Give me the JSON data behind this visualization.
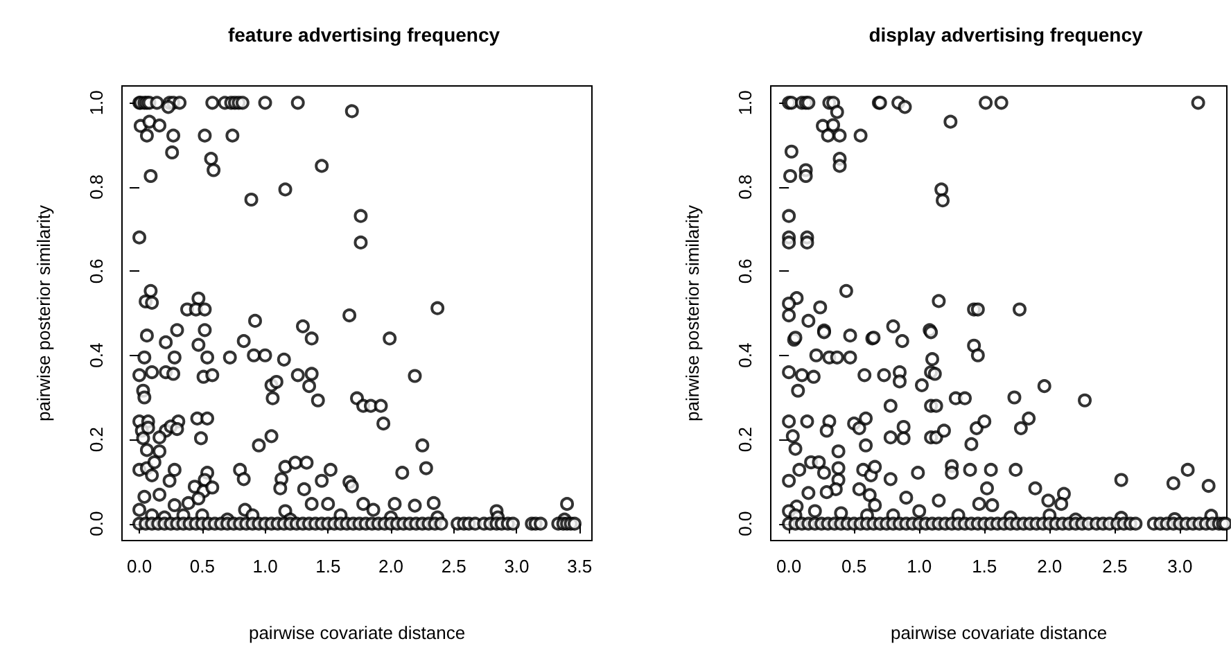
{
  "chart_data": [
    {
      "type": "scatter",
      "title": "feature advertising frequency",
      "xlabel": "pairwise covariate distance",
      "ylabel": "pairwise posterior similarity",
      "marker": "circle",
      "color": "#000000",
      "xlim": [
        -0.138,
        3.598
      ],
      "ylim": [
        -0.04,
        1.04
      ],
      "xticks": [
        {
          "value": 0,
          "label": "0.0"
        },
        {
          "value": 0.5,
          "label": "0.5"
        },
        {
          "value": 1,
          "label": "1.0"
        },
        {
          "value": 1.5,
          "label": "1.5"
        },
        {
          "value": 2,
          "label": "2.0"
        },
        {
          "value": 2.5,
          "label": "2.5"
        },
        {
          "value": 3,
          "label": "3.0"
        },
        {
          "value": 3.5,
          "label": "3.5"
        }
      ],
      "yticks": [
        {
          "value": 0,
          "label": "0.0"
        },
        {
          "value": 0.2,
          "label": "0.2"
        },
        {
          "value": 0.4,
          "label": "0.4"
        },
        {
          "value": 0.6,
          "label": "0.6"
        },
        {
          "value": 0.8,
          "label": "0.8"
        },
        {
          "value": 1,
          "label": "1.0"
        }
      ],
      "x": [
        0,
        0.01,
        0.04,
        0.06,
        0.08,
        0.14,
        0.24,
        0.27,
        0.32,
        0.58,
        0.68,
        0.73,
        0.76,
        0.79,
        0.82,
        1.0,
        1.26,
        0.23,
        1.69,
        0.01,
        0.08,
        0.16,
        0.06,
        0.27,
        0.52,
        0.74,
        0.26,
        0.57,
        0.59,
        1.45,
        0.09,
        1.16,
        0.89,
        1.76,
        1.76,
        0,
        0.09,
        0.05,
        0.1,
        0.47,
        0.38,
        0.45,
        0.52,
        0.92,
        1.3,
        1.67,
        2.37,
        0.06,
        0.3,
        0.52,
        0.21,
        0.47,
        0.83,
        1.37,
        1.99,
        0.04,
        0.28,
        0.54,
        0.72,
        0.91,
        1.0,
        1.15,
        0,
        0.1,
        0.21,
        0.27,
        0.51,
        0.58,
        1.26,
        1.37,
        2.19,
        0.03,
        0.04,
        1.05,
        1.09,
        1.06,
        1.35,
        1.42,
        1.73,
        1.78,
        1.84,
        1.92,
        1.94,
        0,
        0.07,
        0.31,
        0.46,
        0.54,
        0.02,
        0.07,
        0.21,
        0.25,
        0.3,
        0.49,
        0.03,
        0.16,
        1.05,
        0.95,
        2.25,
        0.06,
        0.16,
        0,
        0.06,
        0.28,
        0.12,
        0.1,
        0.24,
        0.54,
        0.52,
        0.8,
        0.83,
        1.16,
        1.24,
        1.33,
        1.52,
        1.45,
        1.13,
        1.12,
        1.31,
        1.67,
        1.69,
        2.09,
        2.28,
        0.04,
        0.16,
        0.44,
        0.51,
        0.58,
        0.39,
        0.47,
        1.37,
        1.5,
        1.78,
        2.03,
        2.19,
        2.34,
        3.4,
        2.84,
        0,
        0.28,
        0.84,
        1.16,
        1.86,
        0.1,
        0.2,
        0.35,
        0.5,
        0.7,
        0.9,
        1.2,
        1.6,
        2.0,
        2.37,
        2.85,
        3.38,
        0,
        0.05,
        0.1,
        0.15,
        0.2,
        0.25,
        0.3,
        0.35,
        0.4,
        0.45,
        0.5,
        0.55,
        0.6,
        0.65,
        0.7,
        0.75,
        0.8,
        0.85,
        0.9,
        0.95,
        1.0,
        1.05,
        1.1,
        1.15,
        1.2,
        1.25,
        1.3,
        1.35,
        1.4,
        1.45,
        1.5,
        1.55,
        1.6,
        1.65,
        1.7,
        1.75,
        1.8,
        1.85,
        1.9,
        1.95,
        2.0,
        2.05,
        2.1,
        2.15,
        2.2,
        2.25,
        2.3,
        2.35,
        2.4,
        2.53,
        2.58,
        2.62,
        2.67,
        2.74,
        2.79,
        2.84,
        2.88,
        2.93,
        2.97,
        3.12,
        3.15,
        3.19,
        3.33,
        3.37,
        3.4,
        3.43,
        3.46
      ],
      "values": [
        1,
        1,
        1,
        1,
        1,
        1,
        1,
        1,
        1,
        1,
        1,
        1,
        1,
        1,
        1,
        1,
        1,
        0.99,
        0.98,
        0.945,
        0.955,
        0.946,
        0.922,
        0.922,
        0.922,
        0.922,
        0.882,
        0.867,
        0.84,
        0.85,
        0.826,
        0.794,
        0.77,
        0.731,
        0.668,
        0.68,
        0.553,
        0.528,
        0.525,
        0.535,
        0.509,
        0.509,
        0.509,
        0.482,
        0.469,
        0.495,
        0.512,
        0.447,
        0.46,
        0.46,
        0.431,
        0.425,
        0.434,
        0.44,
        0.44,
        0.395,
        0.395,
        0.395,
        0.395,
        0.4,
        0.4,
        0.39,
        0.353,
        0.36,
        0.36,
        0.356,
        0.349,
        0.353,
        0.353,
        0.356,
        0.351,
        0.316,
        0.3,
        0.329,
        0.337,
        0.298,
        0.327,
        0.293,
        0.298,
        0.28,
        0.28,
        0.28,
        0.238,
        0.243,
        0.243,
        0.243,
        0.25,
        0.25,
        0.221,
        0.228,
        0.221,
        0.231,
        0.225,
        0.203,
        0.203,
        0.205,
        0.208,
        0.186,
        0.186,
        0.175,
        0.172,
        0.128,
        0.132,
        0.128,
        0.146,
        0.115,
        0.102,
        0.121,
        0.104,
        0.128,
        0.106,
        0.135,
        0.145,
        0.145,
        0.128,
        0.102,
        0.106,
        0.084,
        0.082,
        0.099,
        0.089,
        0.121,
        0.132,
        0.064,
        0.069,
        0.088,
        0.077,
        0.086,
        0.049,
        0.06,
        0.047,
        0.047,
        0.047,
        0.047,
        0.043,
        0.049,
        0.047,
        0.03,
        0.033,
        0.044,
        0.033,
        0.03,
        0.033,
        0.02,
        0.015,
        0.02,
        0.02,
        0.01,
        0.02,
        0.01,
        0.02,
        0.015,
        0.015,
        0.015,
        0.01,
        0,
        0,
        0,
        0,
        0,
        0,
        0,
        0,
        0,
        0,
        0,
        0,
        0,
        0,
        0,
        0,
        0,
        0,
        0,
        0,
        0,
        0,
        0,
        0,
        0,
        0,
        0,
        0,
        0,
        0,
        0,
        0,
        0,
        0,
        0,
        0,
        0,
        0,
        0,
        0,
        0,
        0,
        0,
        0,
        0,
        0,
        0,
        0,
        0,
        0,
        0,
        0,
        0,
        0,
        0,
        0,
        0,
        0,
        0,
        0,
        0,
        0,
        0,
        0,
        0,
        0,
        0
      ]
    },
    {
      "type": "scatter",
      "title": "display advertising frequency",
      "xlabel": "pairwise covariate distance",
      "ylabel": "pairwise posterior similarity",
      "marker": "circle",
      "color": "#000000",
      "xlim": [
        -0.139,
        3.36
      ],
      "ylim": [
        -0.04,
        1.04
      ],
      "xticks": [
        {
          "value": 0,
          "label": "0.0"
        },
        {
          "value": 0.5,
          "label": "0.5"
        },
        {
          "value": 1,
          "label": "1.0"
        },
        {
          "value": 1.5,
          "label": "1.5"
        },
        {
          "value": 2,
          "label": "2.0"
        },
        {
          "value": 2.5,
          "label": "2.5"
        },
        {
          "value": 3,
          "label": "3.0"
        }
      ],
      "yticks": [
        {
          "value": 0,
          "label": "0.0"
        },
        {
          "value": 0.2,
          "label": "0.2"
        },
        {
          "value": 0.4,
          "label": "0.4"
        },
        {
          "value": 0.6,
          "label": "0.6"
        },
        {
          "value": 0.8,
          "label": "0.8"
        },
        {
          "value": 1,
          "label": "1.0"
        }
      ],
      "x": [
        0,
        0.02,
        0.1,
        0.13,
        0.15,
        0.31,
        0.34,
        0.69,
        0.7,
        0.84,
        1.51,
        1.63,
        3.14,
        0.89,
        0.37,
        1.24,
        0.26,
        0.34,
        0.3,
        0.39,
        0.55,
        0.02,
        0.39,
        0.39,
        0.13,
        0.01,
        0.13,
        1.17,
        1.18,
        0,
        0,
        0,
        0.14,
        0.14,
        0.44,
        0.06,
        0,
        1.15,
        0,
        0.24,
        0.15,
        1.42,
        1.45,
        1.77,
        0.27,
        0.47,
        0.8,
        1.08,
        0.64,
        0.87,
        0.04,
        1.42,
        0.05,
        0.27,
        0.65,
        1.09,
        1.45,
        0.21,
        0.31,
        0.37,
        0.47,
        1.1,
        0,
        0.1,
        0.19,
        0.07,
        0.58,
        0.73,
        0.85,
        0.85,
        1.09,
        1.12,
        1.02,
        1.28,
        1.35,
        1.73,
        1.96,
        2.27,
        0.78,
        1.09,
        1.13,
        0,
        0.14,
        0.31,
        0.29,
        0.5,
        0.54,
        0.59,
        0.59,
        0.03,
        0.05,
        0.38,
        0.78,
        0.88,
        0.88,
        1.09,
        1.13,
        1.19,
        1.4,
        1.44,
        1.5,
        1.78,
        1.84,
        0,
        0.08,
        0.17,
        0.23,
        0.27,
        0.38,
        0.38,
        0.36,
        0.57,
        0.63,
        0.66,
        0.78,
        0.99,
        1.25,
        1.25,
        1.39,
        1.55,
        1.52,
        1.74,
        1.89,
        2.55,
        2.95,
        3.06,
        3.22,
        0.15,
        0.29,
        0.54,
        0.62,
        0.9,
        1.15,
        1.99,
        2.11,
        2.09,
        1.46,
        1.56,
        0.66,
        0.06,
        0,
        3.24,
        2.55,
        2.96,
        0.05,
        0.2,
        0.4,
        0.6,
        0.8,
        1.0,
        1.3,
        1.7,
        2.0,
        2.2,
        0,
        0.05,
        0.1,
        0.15,
        0.2,
        0.25,
        0.3,
        0.35,
        0.4,
        0.45,
        0.5,
        0.55,
        0.6,
        0.65,
        0.7,
        0.75,
        0.8,
        0.85,
        0.9,
        0.95,
        1.0,
        1.05,
        1.1,
        1.15,
        1.2,
        1.25,
        1.3,
        1.35,
        1.4,
        1.45,
        1.5,
        1.55,
        1.6,
        1.65,
        1.7,
        1.75,
        1.8,
        1.85,
        1.9,
        1.95,
        2.0,
        2.05,
        2.1,
        2.15,
        2.2,
        2.25,
        2.3,
        2.36,
        2.41,
        2.46,
        2.52,
        2.57,
        2.62,
        2.66,
        2.8,
        2.85,
        2.9,
        2.95,
        3.0,
        3.05,
        3.1,
        3.15,
        3.2,
        3.25,
        3.3,
        3.33,
        3.35
      ],
      "values": [
        1,
        1,
        1,
        1,
        1,
        1,
        1,
        1,
        1,
        1,
        1,
        1,
        1,
        0.99,
        0.978,
        0.955,
        0.945,
        0.947,
        0.922,
        0.922,
        0.922,
        0.884,
        0.867,
        0.85,
        0.84,
        0.826,
        0.826,
        0.794,
        0.768,
        0.731,
        0.68,
        0.668,
        0.68,
        0.668,
        0.553,
        0.536,
        0.523,
        0.529,
        0.495,
        0.514,
        0.482,
        0.509,
        0.509,
        0.509,
        0.459,
        0.447,
        0.469,
        0.46,
        0.44,
        0.434,
        0.437,
        0.423,
        0.442,
        0.455,
        0.442,
        0.455,
        0.4,
        0.4,
        0.395,
        0.395,
        0.395,
        0.391,
        0.36,
        0.353,
        0.349,
        0.316,
        0.353,
        0.353,
        0.36,
        0.338,
        0.36,
        0.356,
        0.329,
        0.298,
        0.298,
        0.3,
        0.327,
        0.293,
        0.28,
        0.28,
        0.28,
        0.243,
        0.243,
        0.243,
        0.221,
        0.238,
        0.227,
        0.25,
        0.186,
        0.208,
        0.178,
        0.172,
        0.205,
        0.203,
        0.23,
        0.205,
        0.205,
        0.221,
        0.189,
        0.227,
        0.243,
        0.227,
        0.25,
        0.102,
        0.128,
        0.146,
        0.146,
        0.121,
        0.132,
        0.104,
        0.082,
        0.128,
        0.115,
        0.135,
        0.106,
        0.121,
        0.137,
        0.121,
        0.128,
        0.128,
        0.084,
        0.128,
        0.084,
        0.104,
        0.096,
        0.128,
        0.09,
        0.073,
        0.075,
        0.082,
        0.068,
        0.062,
        0.055,
        0.055,
        0.071,
        0.047,
        0.047,
        0.044,
        0.044,
        0.041,
        0.03,
        0.019,
        0.014,
        0.011,
        0.02,
        0.03,
        0.025,
        0.02,
        0.02,
        0.03,
        0.02,
        0.015,
        0.02,
        0.01,
        0,
        0,
        0,
        0,
        0,
        0,
        0,
        0,
        0,
        0,
        0,
        0,
        0,
        0,
        0,
        0,
        0,
        0,
        0,
        0,
        0,
        0,
        0,
        0,
        0,
        0,
        0,
        0,
        0,
        0,
        0,
        0,
        0,
        0,
        0,
        0,
        0,
        0,
        0,
        0,
        0,
        0,
        0,
        0,
        0,
        0,
        0,
        0,
        0,
        0,
        0,
        0,
        0,
        0,
        0,
        0,
        0,
        0,
        0,
        0,
        0,
        0,
        0,
        0,
        0,
        0,
        0
      ]
    }
  ]
}
